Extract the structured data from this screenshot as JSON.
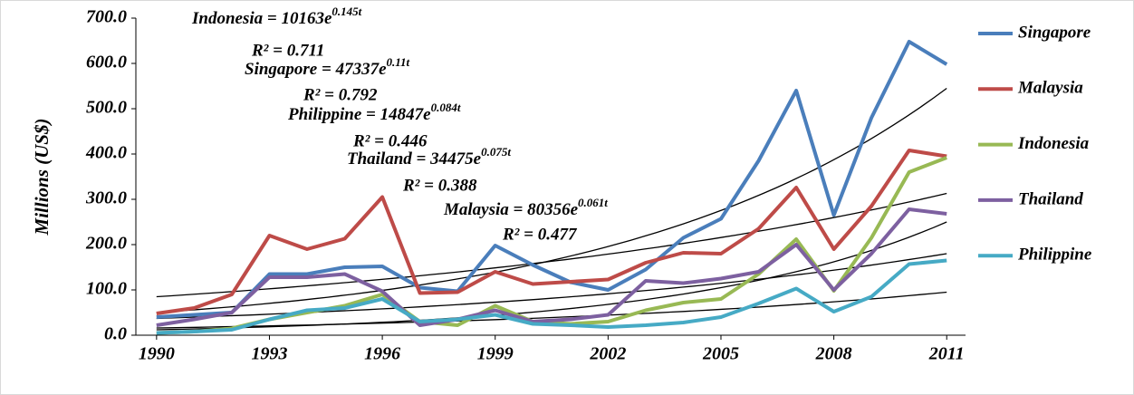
{
  "chart_data": {
    "type": "line",
    "y_label": "Millions (US$)",
    "x": [
      1990,
      1991,
      1992,
      1993,
      1994,
      1995,
      1996,
      1997,
      1998,
      1999,
      2000,
      2001,
      2002,
      2003,
      2004,
      2005,
      2006,
      2007,
      2008,
      2009,
      2010,
      2011
    ],
    "xlim": [
      1989.45,
      2011.5
    ],
    "xticks": [
      1990,
      1993,
      1996,
      1999,
      2002,
      2005,
      2008,
      2011
    ],
    "ylim": [
      0,
      700
    ],
    "yticks": [
      {
        "value": 0,
        "label": "0.0"
      },
      {
        "value": 100,
        "label": "100.0"
      },
      {
        "value": 200,
        "label": "200.0"
      },
      {
        "value": 300,
        "label": "300.0"
      },
      {
        "value": 400,
        "label": "400.0"
      },
      {
        "value": 500,
        "label": "500.0"
      },
      {
        "value": 600,
        "label": "600.0"
      },
      {
        "value": 700,
        "label": "700.0"
      }
    ],
    "legend": "right",
    "series": [
      {
        "name": "Singapore",
        "color": "#4a7ebb",
        "values": [
          40,
          45,
          50,
          135,
          135,
          150,
          152,
          105,
          97,
          198,
          155,
          117,
          100,
          145,
          215,
          257,
          385,
          540,
          265,
          480,
          648,
          598
        ]
      },
      {
        "name": "Malaysia",
        "color": "#be4b48",
        "values": [
          48,
          60,
          90,
          220,
          190,
          213,
          305,
          93,
          95,
          140,
          113,
          118,
          123,
          160,
          182,
          180,
          235,
          326,
          190,
          285,
          408,
          395
        ]
      },
      {
        "name": "Indonesia",
        "color": "#98b954",
        "values": [
          5,
          8,
          15,
          35,
          50,
          65,
          90,
          30,
          22,
          65,
          30,
          25,
          30,
          55,
          72,
          80,
          135,
          212,
          98,
          215,
          360,
          392
        ]
      },
      {
        "name": "Thailand",
        "color": "#7d60a0",
        "values": [
          22,
          35,
          50,
          128,
          128,
          135,
          97,
          22,
          35,
          55,
          30,
          35,
          45,
          120,
          115,
          125,
          140,
          200,
          100,
          180,
          278,
          268
        ]
      },
      {
        "name": "Philippine",
        "color": "#46aac5",
        "values": [
          5,
          8,
          12,
          35,
          55,
          60,
          80,
          30,
          35,
          45,
          25,
          22,
          18,
          22,
          28,
          40,
          70,
          103,
          52,
          85,
          157,
          165
        ]
      }
    ],
    "trendline_color": "#000000",
    "trendlines": [
      {
        "values": [
          50,
          545
        ]
      },
      {
        "values": [
          85,
          313
        ]
      },
      {
        "values": [
          12,
          250
        ]
      },
      {
        "values": [
          37,
          180
        ]
      },
      {
        "values": [
          16,
          95
        ]
      }
    ],
    "annotations": [
      {
        "text": "Indonesia = 10163e",
        "exponent": "0.145t",
        "r2": "R² = 0.711"
      },
      {
        "text": "Singapore = 47337e",
        "exponent": "0.11t",
        "r2": "R² = 0.792"
      },
      {
        "text": "Philippine = 14847e",
        "exponent": "0.084t",
        "r2": "R² = 0.446"
      },
      {
        "text": "Thailand = 34475e",
        "exponent": "0.075t",
        "r2": "R² = 0.388"
      },
      {
        "text": "Malaysia = 80356e",
        "exponent": "0.061t",
        "r2": "R² = 0.477"
      }
    ]
  }
}
